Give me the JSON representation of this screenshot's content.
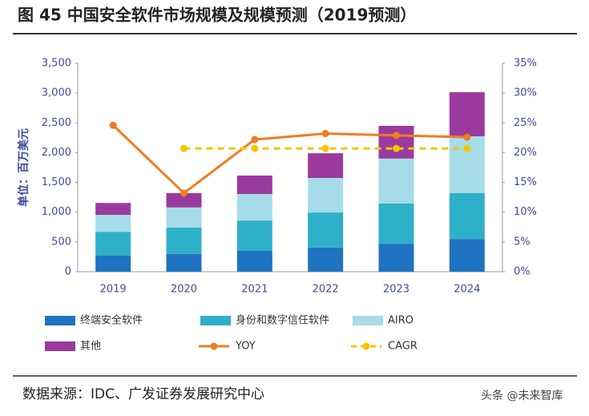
{
  "title": "图 45 中国安全软件市场规模及规模预测（2019预测）",
  "source": "数据来源：IDC、广发证券发展研究中心",
  "watermark": "头条 @未来智库",
  "chart_data": {
    "type": "bar",
    "stacked": true,
    "y_label": "单位：百万美元",
    "categories": [
      "2019",
      "2020",
      "2021",
      "2022",
      "2023",
      "2024"
    ],
    "series": [
      {
        "name": "终端安全软件",
        "color": "#1f73c0",
        "values": [
          270,
          300,
          350,
          405,
          470,
          550
        ]
      },
      {
        "name": "身份和数字信任软件",
        "color": "#2fb0c9",
        "values": [
          400,
          440,
          510,
          590,
          675,
          770
        ]
      },
      {
        "name": "AIRO",
        "color": "#a6dce9",
        "values": [
          285,
          340,
          445,
          580,
          755,
          955
        ]
      },
      {
        "name": "其他",
        "color": "#9b3a9e",
        "values": [
          200,
          240,
          310,
          415,
          550,
          740
        ]
      },
      {
        "name": "YOY",
        "type": "line",
        "axis": "y2",
        "color": "#ef7d22",
        "values": [
          24.6,
          13.2,
          22.2,
          23.2,
          22.9,
          22.6
        ]
      },
      {
        "name": "CAGR",
        "type": "line",
        "axis": "y2",
        "dashed": true,
        "color": "#f5c400",
        "values": [
          null,
          20.7,
          20.7,
          20.7,
          20.7,
          20.7
        ]
      }
    ],
    "ylim": [
      0,
      3500
    ],
    "yticks": [
      0,
      500,
      {
        "value": 1000,
        "label": "1,000"
      },
      {
        "value": 1500,
        "label": "1,500"
      },
      {
        "value": 2000,
        "label": "2,000"
      },
      {
        "value": 2500,
        "label": "2,500"
      },
      {
        "value": 3000,
        "label": "3,000"
      },
      {
        "value": 3500,
        "label": "3,500"
      }
    ],
    "y2lim": [
      0,
      35
    ],
    "y2ticks": [
      {
        "value": 0,
        "label": "0%"
      },
      {
        "value": 5,
        "label": "5%"
      },
      {
        "value": 10,
        "label": "10%"
      },
      {
        "value": 15,
        "label": "15%"
      },
      {
        "value": 20,
        "label": "20%"
      },
      {
        "value": 25,
        "label": "25%"
      },
      {
        "value": 30,
        "label": "30%"
      },
      {
        "value": 35,
        "label": "35%"
      }
    ],
    "grid": false
  }
}
